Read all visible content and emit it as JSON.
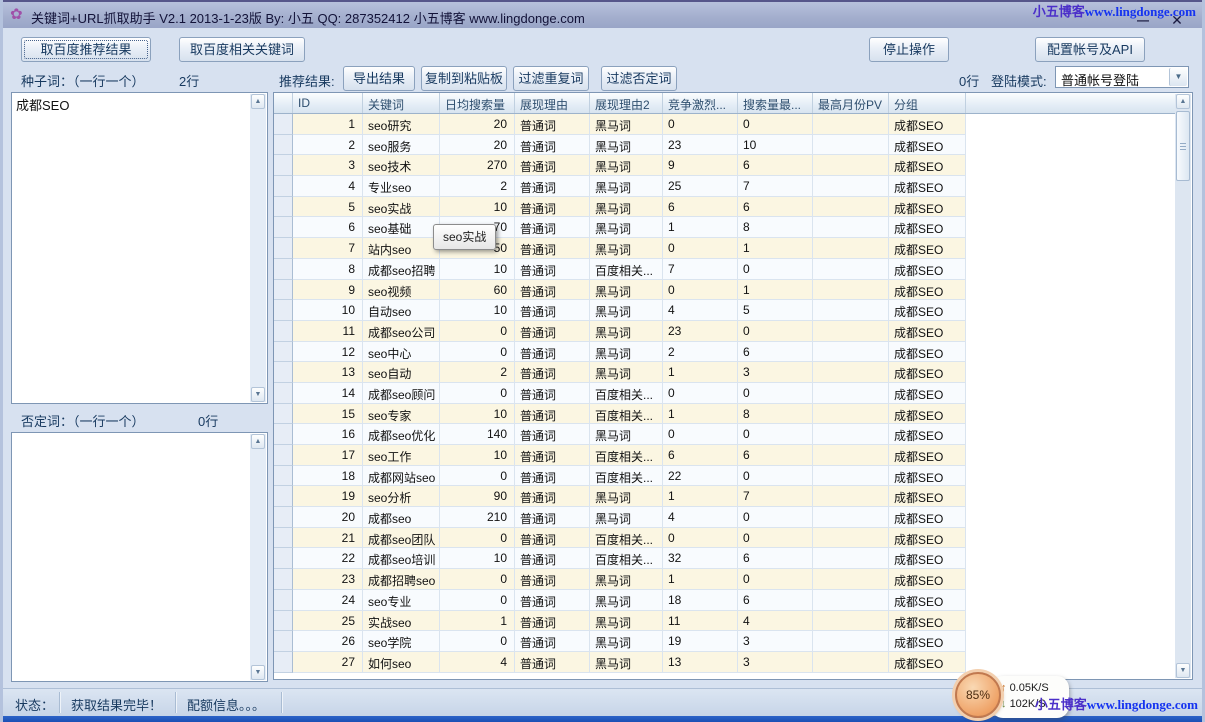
{
  "window": {
    "title": "关键词+URL抓取助手 V2.1 2013-1-23版 By: 小五 QQ: 287352412 小五博客 www.lingdonge.com",
    "minimize": "—",
    "close": "✕",
    "app_icon": "✿"
  },
  "watermark": {
    "brand": "小五博客",
    "url": "www.lingdonge.com"
  },
  "toolbar": {
    "btn_baidu_recommend": "取百度推荐结果",
    "btn_baidu_related": "取百度相关关键词",
    "btn_stop": "停止操作",
    "btn_config": "配置帐号及API"
  },
  "seed": {
    "label": "种子词：（一行一个）",
    "count": "2行",
    "value": "成都SEO"
  },
  "negative": {
    "label": "否定词：（一行一个）",
    "count": "0行",
    "value": ""
  },
  "results": {
    "label": "推荐结果:",
    "btn_export": "导出结果",
    "btn_copy": "复制到粘贴板",
    "btn_filter_dup": "过滤重复词",
    "btn_filter_neg": "过滤否定词",
    "count": "0行",
    "login_label": "登陆模式:",
    "login_value": "普通帐号登陆"
  },
  "tooltip": "seo实战",
  "table": {
    "columns": [
      "ID",
      "关键词",
      "日均搜索量",
      "展现理由",
      "展现理由2",
      "竞争激烈...",
      "搜索量最...",
      "最高月份PV",
      "分组"
    ],
    "rows": [
      [
        "1",
        "seo研究",
        "20",
        "普通词",
        "黑马词",
        "0",
        "0",
        "",
        "成都SEO"
      ],
      [
        "2",
        "seo服务",
        "20",
        "普通词",
        "黑马词",
        "23",
        "10",
        "",
        "成都SEO"
      ],
      [
        "3",
        "seo技术",
        "270",
        "普通词",
        "黑马词",
        "9",
        "6",
        "",
        "成都SEO"
      ],
      [
        "4",
        "专业seo",
        "2",
        "普通词",
        "黑马词",
        "25",
        "7",
        "",
        "成都SEO"
      ],
      [
        "5",
        "seo实战",
        "10",
        "普通词",
        "黑马词",
        "6",
        "6",
        "",
        "成都SEO"
      ],
      [
        "6",
        "seo基础",
        "70",
        "普通词",
        "黑马词",
        "1",
        "8",
        "",
        "成都SEO"
      ],
      [
        "7",
        "站内seo",
        "50",
        "普通词",
        "黑马词",
        "0",
        "1",
        "",
        "成都SEO"
      ],
      [
        "8",
        "成都seo招聘",
        "10",
        "普通词",
        "百度相关...",
        "7",
        "0",
        "",
        "成都SEO"
      ],
      [
        "9",
        "seo视频",
        "60",
        "普通词",
        "黑马词",
        "0",
        "1",
        "",
        "成都SEO"
      ],
      [
        "10",
        "自动seo",
        "10",
        "普通词",
        "黑马词",
        "4",
        "5",
        "",
        "成都SEO"
      ],
      [
        "11",
        "成都seo公司",
        "0",
        "普通词",
        "黑马词",
        "23",
        "0",
        "",
        "成都SEO"
      ],
      [
        "12",
        "seo中心",
        "0",
        "普通词",
        "黑马词",
        "2",
        "6",
        "",
        "成都SEO"
      ],
      [
        "13",
        "seo自动",
        "2",
        "普通词",
        "黑马词",
        "1",
        "3",
        "",
        "成都SEO"
      ],
      [
        "14",
        "成都seo顾问",
        "0",
        "普通词",
        "百度相关...",
        "0",
        "0",
        "",
        "成都SEO"
      ],
      [
        "15",
        "seo专家",
        "10",
        "普通词",
        "百度相关...",
        "1",
        "8",
        "",
        "成都SEO"
      ],
      [
        "16",
        "成都seo优化",
        "140",
        "普通词",
        "黑马词",
        "0",
        "0",
        "",
        "成都SEO"
      ],
      [
        "17",
        "seo工作",
        "10",
        "普通词",
        "百度相关...",
        "6",
        "6",
        "",
        "成都SEO"
      ],
      [
        "18",
        "成都网站seo",
        "0",
        "普通词",
        "百度相关...",
        "22",
        "0",
        "",
        "成都SEO"
      ],
      [
        "19",
        "seo分析",
        "90",
        "普通词",
        "黑马词",
        "1",
        "7",
        "",
        "成都SEO"
      ],
      [
        "20",
        "成都seo",
        "210",
        "普通词",
        "黑马词",
        "4",
        "0",
        "",
        "成都SEO"
      ],
      [
        "21",
        "成都seo团队",
        "0",
        "普通词",
        "百度相关...",
        "0",
        "0",
        "",
        "成都SEO"
      ],
      [
        "22",
        "成都seo培训",
        "10",
        "普通词",
        "百度相关...",
        "32",
        "6",
        "",
        "成都SEO"
      ],
      [
        "23",
        "成都招聘seo",
        "0",
        "普通词",
        "黑马词",
        "1",
        "0",
        "",
        "成都SEO"
      ],
      [
        "24",
        "seo专业",
        "0",
        "普通词",
        "黑马词",
        "18",
        "6",
        "",
        "成都SEO"
      ],
      [
        "25",
        "实战seo",
        "1",
        "普通词",
        "黑马词",
        "11",
        "4",
        "",
        "成都SEO"
      ],
      [
        "26",
        "seo学院",
        "0",
        "普通词",
        "黑马词",
        "19",
        "3",
        "",
        "成都SEO"
      ],
      [
        "27",
        "如何seo",
        "4",
        "普通词",
        "黑马词",
        "13",
        "3",
        "",
        "成都SEO"
      ]
    ]
  },
  "statusbar": {
    "label": "状态：",
    "message": "获取结果完毕！",
    "quota": "配额信息。。。"
  },
  "speed_widget": {
    "percent": "85%",
    "up_arrow": "↑",
    "down_arrow": "↓",
    "up": "0.05K/S",
    "down": "102K/S"
  },
  "colors": {
    "titlebar": "#a8b2d3",
    "accent_blue": "#1b4fb4",
    "row_odd": "#fbf6e2",
    "row_even": "#f8fbfe",
    "watermark_blue": "#1533f0",
    "badge_orange": "#efa368"
  }
}
